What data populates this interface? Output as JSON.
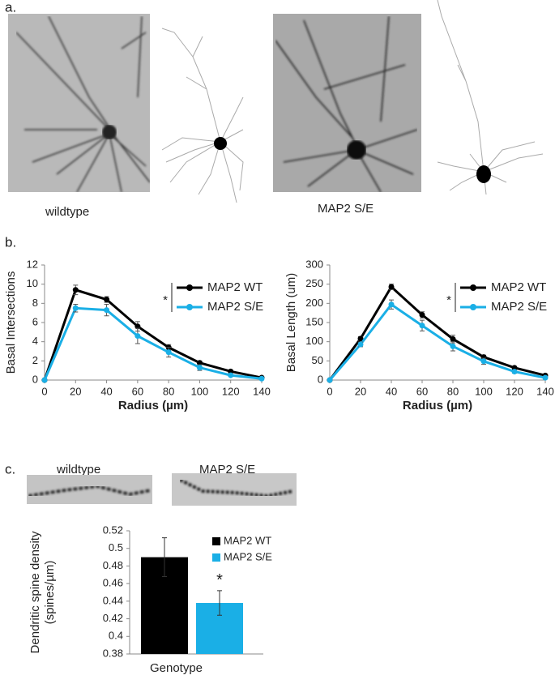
{
  "panel_labels": [
    "a.",
    "b.",
    "c."
  ],
  "image_captions": [
    "wildtype",
    "MAP2 S/E"
  ],
  "spine_captions": [
    "wildtype",
    "MAP2 S/E"
  ],
  "chart_data": [
    {
      "type": "line",
      "xlabel": "Radius (µm)",
      "ylabel": "Basal Intersections",
      "x": [
        0,
        20,
        40,
        60,
        80,
        100,
        120,
        140
      ],
      "xlim": [
        0,
        140
      ],
      "xticks": [
        0,
        20,
        40,
        60,
        80,
        100,
        120,
        140
      ],
      "ylim": [
        0,
        12
      ],
      "yticks": [
        0,
        2,
        4,
        6,
        8,
        10,
        12
      ],
      "annotation": "*",
      "series": [
        {
          "name": "MAP2 WT",
          "color": "#000000",
          "values": [
            0,
            9.4,
            8.4,
            5.6,
            3.4,
            1.8,
            0.9,
            0.25
          ],
          "errors": [
            0,
            0.5,
            0.3,
            0.5,
            0.3,
            0.2,
            0.1,
            0.05
          ]
        },
        {
          "name": "MAP2 S/E",
          "color": "#1aafe6",
          "values": [
            0,
            7.5,
            7.3,
            4.6,
            2.9,
            1.3,
            0.5,
            0.15
          ],
          "errors": [
            0,
            0.4,
            0.6,
            0.8,
            0.5,
            0.3,
            0.1,
            0.05
          ]
        }
      ]
    },
    {
      "type": "line",
      "xlabel": "Radius (µm)",
      "ylabel": "Basal Length (um)",
      "x": [
        0,
        20,
        40,
        60,
        80,
        100,
        120,
        140
      ],
      "xlim": [
        0,
        140
      ],
      "xticks": [
        0,
        20,
        40,
        60,
        80,
        100,
        120,
        140
      ],
      "ylim": [
        0,
        300
      ],
      "yticks": [
        0,
        50,
        100,
        150,
        200,
        250,
        300
      ],
      "annotation": "*",
      "series": [
        {
          "name": "MAP2 WT",
          "color": "#000000",
          "values": [
            0,
            108,
            243,
            170,
            107,
            60,
            32,
            12
          ],
          "errors": [
            0,
            5,
            7,
            8,
            10,
            5,
            3,
            2
          ]
        },
        {
          "name": "MAP2 S/E",
          "color": "#1aafe6",
          "values": [
            0,
            93,
            197,
            142,
            88,
            49,
            22,
            6
          ],
          "errors": [
            0,
            6,
            12,
            14,
            12,
            8,
            4,
            2
          ]
        }
      ]
    },
    {
      "type": "bar",
      "categories": [
        "Genotype"
      ],
      "ylabel": [
        "Dendritic spine density",
        "(spines/µm)"
      ],
      "ylim": [
        0.38,
        0.52
      ],
      "yticks": [
        0.38,
        0.4,
        0.42,
        0.44,
        0.46,
        0.48,
        0.5,
        0.52
      ],
      "annotation": "*",
      "series": [
        {
          "name": "MAP2 WT",
          "color": "#000000",
          "values": [
            0.49
          ],
          "errors": [
            0.022
          ]
        },
        {
          "name": "MAP2 S/E",
          "color": "#1aafe6",
          "values": [
            0.438
          ],
          "errors": [
            0.014
          ]
        }
      ]
    }
  ]
}
